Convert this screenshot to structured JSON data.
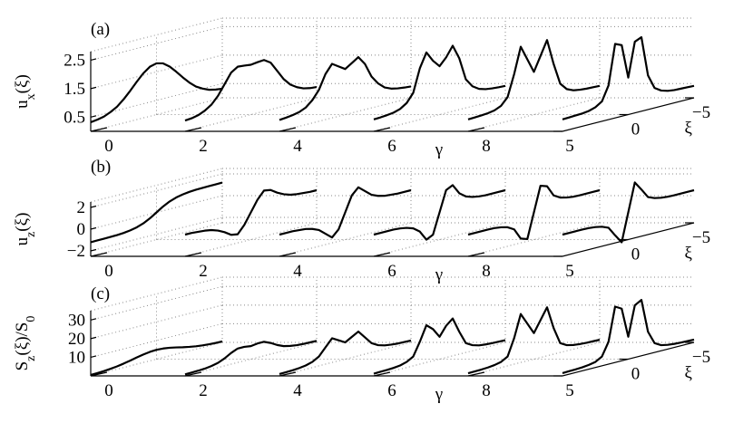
{
  "chart_data": [
    {
      "type": "waterfall",
      "panel_label": "(a)",
      "ylabel": [
        "u",
        "x",
        "(ξ)"
      ],
      "xlabel": "γ",
      "zlabel": "ξ",
      "x": [
        -5,
        -4.5,
        -4,
        -3.5,
        -3,
        -2.5,
        -2,
        -1.5,
        -1,
        -0.5,
        0,
        0.5,
        1,
        1.5,
        2,
        2.5,
        3,
        3.5,
        4,
        4.5,
        5
      ],
      "xlim": [
        -5,
        5
      ],
      "xticks": [
        5,
        0,
        {
          "value": -5,
          "label": "−5"
        }
      ],
      "glim": [
        0,
        10
      ],
      "gticks": [
        0,
        2,
        4,
        6,
        8
      ],
      "ylim": [
        0,
        2.8
      ],
      "yticks": [
        0.5,
        1.5,
        2.5
      ],
      "grid": true,
      "color": "#000000",
      "series": [
        {
          "gamma": 0,
          "values": [
            0.32,
            0.35,
            0.4,
            0.5,
            0.63,
            0.83,
            1.07,
            1.33,
            1.57,
            1.74,
            1.8,
            1.74,
            1.57,
            1.33,
            1.07,
            0.83,
            0.63,
            0.5,
            0.4,
            0.35,
            0.32
          ]
        },
        {
          "gamma": 2,
          "values": [
            0.38,
            0.4,
            0.45,
            0.55,
            0.7,
            0.95,
            1.3,
            1.65,
            1.8,
            1.78,
            1.75,
            1.78,
            1.8,
            1.65,
            1.3,
            0.95,
            0.7,
            0.55,
            0.45,
            0.4,
            0.38
          ]
        },
        {
          "gamma": 4,
          "values": [
            0.4,
            0.42,
            0.45,
            0.5,
            0.6,
            0.8,
            1.1,
            1.6,
            1.9,
            1.75,
            1.6,
            1.75,
            1.9,
            1.6,
            1.1,
            0.8,
            0.6,
            0.5,
            0.45,
            0.42,
            0.4
          ]
        },
        {
          "gamma": 6,
          "values": [
            0.42,
            0.43,
            0.45,
            0.48,
            0.55,
            0.7,
            1.0,
            1.8,
            2.3,
            1.95,
            1.7,
            1.95,
            2.3,
            1.8,
            1.0,
            0.7,
            0.55,
            0.48,
            0.45,
            0.43,
            0.42
          ]
        },
        {
          "gamma": 8,
          "values": [
            0.42,
            0.43,
            0.44,
            0.46,
            0.5,
            0.6,
            0.85,
            1.6,
            2.5,
            2.0,
            1.5,
            2.0,
            2.5,
            1.6,
            0.85,
            0.6,
            0.5,
            0.46,
            0.44,
            0.43,
            0.42
          ]
        },
        {
          "gamma": 10,
          "values": [
            0.42,
            0.43,
            0.44,
            0.45,
            0.48,
            0.55,
            0.7,
            1.2,
            2.6,
            2.5,
            1.3,
            2.5,
            2.6,
            1.2,
            0.7,
            0.55,
            0.48,
            0.45,
            0.44,
            0.43,
            0.42
          ]
        }
      ]
    },
    {
      "type": "waterfall",
      "panel_label": "(b)",
      "ylabel": [
        "u",
        "z",
        "(ξ)"
      ],
      "xlabel": "γ",
      "zlabel": "ξ",
      "x": [
        -5,
        -4.5,
        -4,
        -3.5,
        -3,
        -2.5,
        -2,
        -1.5,
        -1,
        -0.5,
        0,
        0.5,
        1,
        1.5,
        2,
        2.5,
        3,
        3.5,
        4,
        4.5,
        5
      ],
      "xlim": [
        -5,
        5
      ],
      "xticks": [
        5,
        0,
        {
          "value": -5,
          "label": "−5"
        }
      ],
      "glim": [
        0,
        10
      ],
      "gticks": [
        0,
        2,
        4,
        6,
        8
      ],
      "ylim": [
        -2.5,
        2.5
      ],
      "yticks": [
        {
          "value": -2,
          "label": "−2"
        },
        0,
        2
      ],
      "grid": true,
      "color": "#000000",
      "series": [
        {
          "gamma": 0,
          "values": [
            1.2,
            1.19,
            1.19,
            1.18,
            1.16,
            1.12,
            1.04,
            0.91,
            0.7,
            0.39,
            0,
            -0.39,
            -0.7,
            -0.91,
            -1.04,
            -1.12,
            -1.16,
            -1.18,
            -1.19,
            -1.19,
            -1.2
          ]
        },
        {
          "gamma": 2,
          "values": [
            0.5,
            0.5,
            0.55,
            0.6,
            0.7,
            0.9,
            1.2,
            1.6,
            1.7,
            1.0,
            0,
            -1.0,
            -1.7,
            -1.6,
            -1.2,
            -0.9,
            -0.7,
            -0.6,
            -0.55,
            -0.5,
            -0.5
          ]
        },
        {
          "gamma": 4,
          "values": [
            0.5,
            0.5,
            0.5,
            0.55,
            0.6,
            0.75,
            1.0,
            1.5,
            2.0,
            1.4,
            0,
            -1.4,
            -2.0,
            -1.5,
            -1.0,
            -0.75,
            -0.6,
            -0.55,
            -0.5,
            -0.5,
            -0.5
          ]
        },
        {
          "gamma": 6,
          "values": [
            0.5,
            0.5,
            0.5,
            0.5,
            0.55,
            0.65,
            0.85,
            1.3,
            2.2,
            1.9,
            0,
            -1.9,
            -2.2,
            -1.3,
            -0.85,
            -0.65,
            -0.55,
            -0.5,
            -0.5,
            -0.5,
            -0.5
          ]
        },
        {
          "gamma": 8,
          "values": [
            0.5,
            0.5,
            0.5,
            0.5,
            0.52,
            0.6,
            0.75,
            1.1,
            2.1,
            2.3,
            0,
            -2.3,
            -2.1,
            -1.1,
            -0.75,
            -0.6,
            -0.52,
            -0.5,
            -0.5,
            -0.5,
            -0.5
          ]
        },
        {
          "gamma": 10,
          "values": [
            0.5,
            0.5,
            0.5,
            0.5,
            0.52,
            0.58,
            0.7,
            0.95,
            1.8,
            2.6,
            0,
            -2.6,
            -1.8,
            -0.95,
            -0.7,
            -0.58,
            -0.52,
            -0.5,
            -0.5,
            -0.5,
            -0.5
          ]
        }
      ]
    },
    {
      "type": "waterfall",
      "panel_label": "(c)",
      "ylabel": [
        "S",
        "z",
        "(ξ)/S",
        "0"
      ],
      "xlabel": "γ",
      "zlabel": "ξ",
      "x": [
        -5,
        -4.5,
        -4,
        -3.5,
        -3,
        -2.5,
        -2,
        -1.5,
        -1,
        -0.5,
        0,
        0.5,
        1,
        1.5,
        2,
        2.5,
        3,
        3.5,
        4,
        4.5,
        5
      ],
      "xlim": [
        -5,
        5
      ],
      "xticks": [
        5,
        0,
        {
          "value": -5,
          "label": "−5"
        }
      ],
      "glim": [
        0,
        10
      ],
      "gticks": [
        0,
        2,
        4,
        6,
        8
      ],
      "ylim": [
        0,
        35
      ],
      "yticks": [
        10,
        20,
        30
      ],
      "grid": true,
      "color": "#000000",
      "series": [
        {
          "gamma": 0,
          "values": [
            0.5,
            0.6,
            0.8,
            1.1,
            1.5,
            2.1,
            2.8,
            3.6,
            4.3,
            4.8,
            5,
            4.8,
            4.3,
            3.6,
            2.8,
            2.1,
            1.5,
            1.1,
            0.8,
            0.6,
            0.5
          ]
        },
        {
          "gamma": 2,
          "values": [
            0.8,
            0.9,
            1,
            1.2,
            1.7,
            2.5,
            4,
            6,
            7.5,
            7.5,
            7,
            7.5,
            7.5,
            6,
            4,
            2.5,
            1.7,
            1.2,
            1,
            0.9,
            0.8
          ]
        },
        {
          "gamma": 4,
          "values": [
            1,
            1.1,
            1.2,
            1.5,
            2,
            3,
            5,
            9,
            13,
            11,
            9,
            11,
            13,
            9,
            5,
            3,
            2,
            1.5,
            1.2,
            1.1,
            1
          ]
        },
        {
          "gamma": 6,
          "values": [
            1.2,
            1.3,
            1.4,
            1.6,
            2,
            3,
            5,
            12,
            20,
            17,
            12,
            17,
            20,
            12,
            5,
            3,
            2,
            1.6,
            1.4,
            1.3,
            1.2
          ]
        },
        {
          "gamma": 8,
          "values": [
            1.4,
            1.5,
            1.6,
            1.8,
            2.2,
            3,
            5,
            14,
            26,
            20,
            14,
            20,
            26,
            14,
            5,
            3,
            2.2,
            1.8,
            1.6,
            1.5,
            1.4
          ]
        },
        {
          "gamma": 10,
          "values": [
            1.5,
            1.6,
            1.7,
            1.9,
            2.3,
            3,
            5,
            12,
            30,
            28,
            12,
            28,
            30,
            12,
            5,
            3,
            2.3,
            1.9,
            1.7,
            1.6,
            1.5
          ]
        }
      ]
    }
  ]
}
